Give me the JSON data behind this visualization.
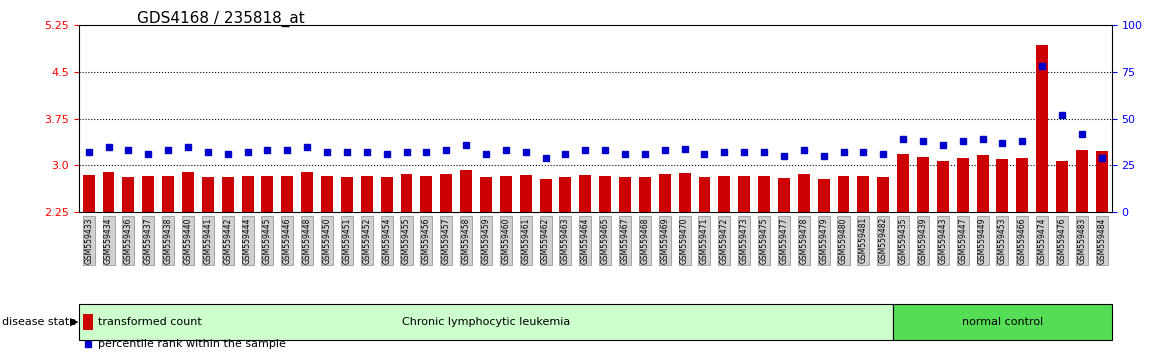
{
  "title": "GDS4168 / 235818_at",
  "samples": [
    "GSM559433",
    "GSM559434",
    "GSM559436",
    "GSM559437",
    "GSM559438",
    "GSM559440",
    "GSM559441",
    "GSM559442",
    "GSM559444",
    "GSM559445",
    "GSM559446",
    "GSM559448",
    "GSM559450",
    "GSM559451",
    "GSM559452",
    "GSM559454",
    "GSM559455",
    "GSM559456",
    "GSM559457",
    "GSM559458",
    "GSM559459",
    "GSM559460",
    "GSM559461",
    "GSM559462",
    "GSM559463",
    "GSM559464",
    "GSM559465",
    "GSM559467",
    "GSM559468",
    "GSM559469",
    "GSM559470",
    "GSM559471",
    "GSM559472",
    "GSM559473",
    "GSM559475",
    "GSM559477",
    "GSM559478",
    "GSM559479",
    "GSM559480",
    "GSM559481",
    "GSM559482",
    "GSM559435",
    "GSM559439",
    "GSM559443",
    "GSM559447",
    "GSM559449",
    "GSM559453",
    "GSM559466",
    "GSM559474",
    "GSM559476",
    "GSM559483",
    "GSM559484"
  ],
  "transformed_counts": [
    2.85,
    2.9,
    2.82,
    2.84,
    2.83,
    2.9,
    2.81,
    2.82,
    2.83,
    2.83,
    2.84,
    2.9,
    2.83,
    2.82,
    2.83,
    2.81,
    2.86,
    2.83,
    2.87,
    2.93,
    2.82,
    2.84,
    2.85,
    2.78,
    2.81,
    2.85,
    2.84,
    2.81,
    2.81,
    2.87,
    2.88,
    2.82,
    2.83,
    2.83,
    2.83,
    2.8,
    2.87,
    2.79,
    2.84,
    2.83,
    2.81,
    3.18,
    3.14,
    3.07,
    3.12,
    3.16,
    3.1,
    3.12,
    4.93,
    3.07,
    3.25,
    3.23
  ],
  "percentile_ranks": [
    32,
    35,
    33,
    31,
    33,
    35,
    32,
    31,
    32,
    33,
    33,
    35,
    32,
    32,
    32,
    31,
    32,
    32,
    33,
    36,
    31,
    33,
    32,
    29,
    31,
    33,
    33,
    31,
    31,
    33,
    34,
    31,
    32,
    32,
    32,
    30,
    33,
    30,
    32,
    32,
    31,
    39,
    38,
    36,
    38,
    39,
    37,
    38,
    78,
    52,
    42,
    29
  ],
  "cll_count": 41,
  "nc_count": 11,
  "bar_color": "#cc0000",
  "dot_color": "#0000cc",
  "left_yticks": [
    2.25,
    3.0,
    3.75,
    4.5,
    5.25
  ],
  "right_yticks": [
    0,
    25,
    50,
    75,
    100
  ],
  "ylim_left": [
    2.25,
    5.25
  ],
  "ylim_right": [
    0,
    100
  ],
  "hlines": [
    3.0,
    3.75,
    4.5
  ],
  "bg_color": "#ffffff",
  "label_bg": "#d0d0d0",
  "cll_bg": "#ccffcc",
  "nc_bg": "#55dd55"
}
